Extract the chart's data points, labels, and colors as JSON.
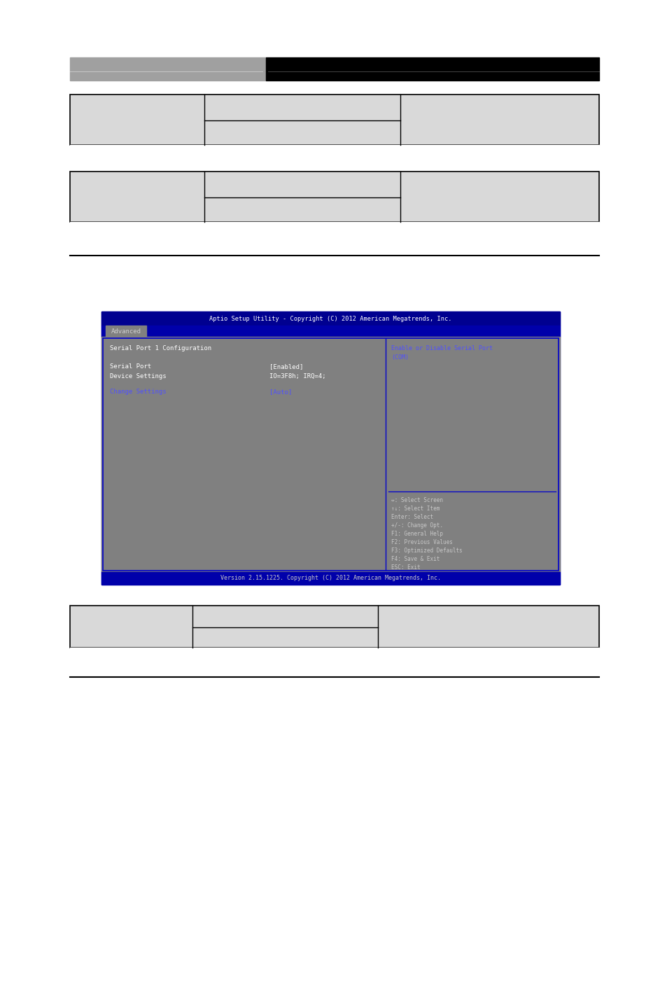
{
  "bg_color": "#ffffff",
  "header_gray": "#a0a0a0",
  "header_black": "#000000",
  "table_bg": "#d9d9d9",
  "bios_title": "Aptio Setup Utility - Copyright (C) 2012 American Megatrends, Inc.",
  "bios_tab": "Advanced",
  "bios_section": "Serial Port 1 Configuration",
  "bios_row1_label": "Serial Port",
  "bios_row1_value": "[Enabled]",
  "bios_row2_label": "Device Settings",
  "bios_row2_value": "IO=3F8h; IRQ=4;",
  "bios_row3_label": "Change Settings",
  "bios_row3_value": "[Auto]",
  "bios_right_title1": "Enable or Disable Serial Port",
  "bios_right_title2": "(COM)",
  "bios_help_lines": [
    "⇔: Select Screen",
    "↑↓: Select Item",
    "Enter: Select",
    "+/-: Change Opt.",
    "F1: General Help",
    "F2: Previous Values",
    "F3: Optimized Defaults",
    "F4: Save & Exit",
    "ESC: Exit"
  ],
  "bios_footer": "Version 2.15.1225. Copyright (C) 2012 American Megatrends, Inc.",
  "bios_blue_text": "#5050ff",
  "bios_white_text": "#ffffff",
  "bios_light_gray_text": "#c8c8c8",
  "bios_header_bg": "#0000aa",
  "bios_content_bg": "#808080",
  "bios_border_color": "#0000cc"
}
